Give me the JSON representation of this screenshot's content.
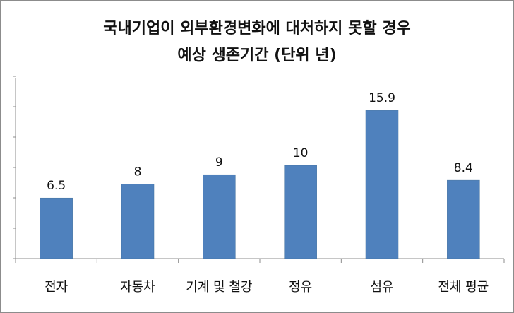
{
  "chart_data": {
    "type": "bar",
    "title_lines": [
      "국내기업이 외부환경변화에 대처하지 못할 경우",
      "예상 생존기간 (단위 년)"
    ],
    "categories": [
      "전자",
      "자동차",
      "기계 및 철강",
      "정유",
      "섬유",
      "전체 평균"
    ],
    "values": [
      6.5,
      8,
      9,
      10,
      15.9,
      8.4
    ],
    "data_labels": [
      "6.5",
      "8",
      "9",
      "10",
      "15.9",
      "8.4"
    ],
    "ylim": [
      0,
      18
    ],
    "bar_color": "#4f81bd",
    "grid": false,
    "legend": "none",
    "xlabel": "",
    "ylabel": ""
  }
}
